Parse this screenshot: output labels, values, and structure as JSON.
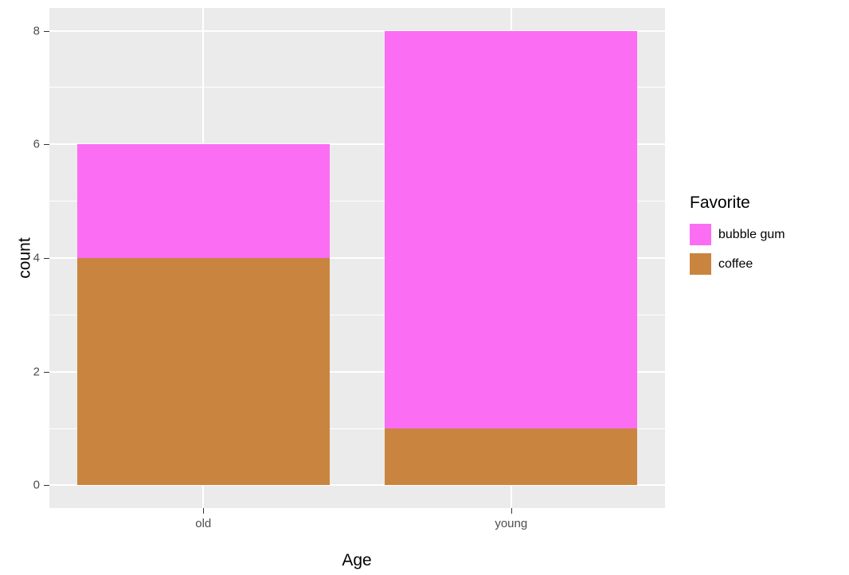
{
  "chart_data": {
    "type": "bar",
    "subtype": "stacked",
    "title": "",
    "xlabel": "Age",
    "ylabel": "count",
    "categories": [
      "old",
      "young"
    ],
    "series": [
      {
        "name": "coffee",
        "color": "#C9853F",
        "values": [
          4,
          1
        ]
      },
      {
        "name": "bubble gum",
        "color": "#FB6DF2",
        "values": [
          2,
          7
        ]
      }
    ],
    "totals": [
      6,
      8
    ],
    "ylim": [
      0,
      8
    ],
    "yticks": [
      0,
      2,
      4,
      6,
      8
    ],
    "minor_gridlines": [
      1,
      3,
      5,
      7
    ],
    "legend": {
      "title": "Favorite",
      "position": "right",
      "entries": [
        {
          "label": "bubble gum",
          "color": "#FB6DF2"
        },
        {
          "label": "coffee",
          "color": "#C9853F"
        }
      ]
    },
    "panel_background": "#EBEBEB",
    "gridline_color": "#FFFFFF",
    "grid": "on"
  }
}
